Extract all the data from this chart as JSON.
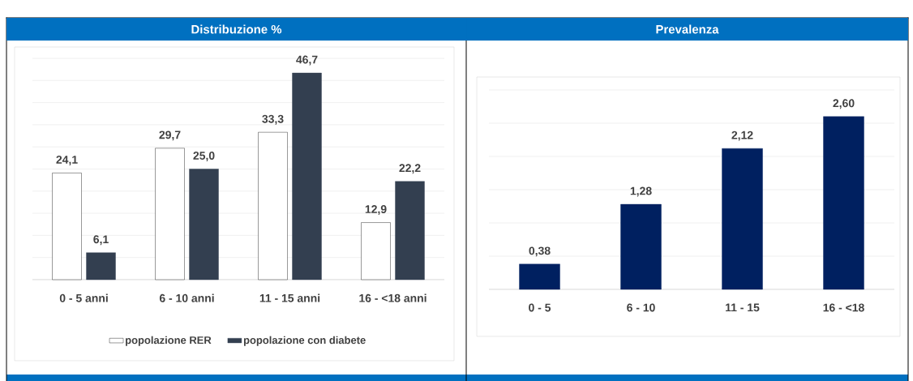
{
  "chart_data": [
    {
      "type": "bar",
      "title": "Distribuzione %",
      "categories": [
        "0 - 5 anni",
        "6 - 10 anni",
        "11 - 15 anni",
        "16 - <18 anni"
      ],
      "series": [
        {
          "name": "popolazione RER",
          "color": "#ffffff",
          "values": [
            24.1,
            29.7,
            33.3,
            12.9
          ],
          "value_labels": [
            "24,1",
            "29,7",
            "33,3",
            "12,9"
          ]
        },
        {
          "name": "popolazione con diabete",
          "color": "#333f50",
          "values": [
            6.1,
            25.0,
            46.7,
            22.2
          ],
          "value_labels": [
            "6,1",
            "25,0",
            "46,7",
            "22,2"
          ]
        }
      ],
      "ylim": [
        0,
        50
      ],
      "yticks": [
        {
          "value": 0,
          "label": null
        },
        {
          "value": 5,
          "label": null
        },
        {
          "value": 10,
          "label": null
        },
        {
          "value": 15,
          "label": null
        },
        {
          "value": 20,
          "label": null
        },
        {
          "value": 25,
          "label": null
        },
        {
          "value": 30,
          "label": null
        },
        {
          "value": 35,
          "label": null
        },
        {
          "value": 40,
          "label": null
        },
        {
          "value": 45,
          "label": null
        },
        {
          "value": 50,
          "label": null
        }
      ],
      "grid": "y",
      "tick_labels": "x",
      "legend": "bottom"
    },
    {
      "type": "bar",
      "title": "Prevalenza",
      "categories": [
        "0 - 5",
        "6 - 10",
        "11 - 15",
        "16 - <18"
      ],
      "color": "#002060",
      "values": [
        0.38,
        1.28,
        2.12,
        2.6
      ],
      "value_labels": [
        "0,38",
        "1,28",
        "2,12",
        "2,60"
      ],
      "ylim": [
        0,
        3
      ],
      "yticks": [
        {
          "value": 0,
          "label": null
        },
        {
          "value": 0.5,
          "label": null
        },
        {
          "value": 1,
          "label": null
        },
        {
          "value": 1.5,
          "label": null
        },
        {
          "value": 2,
          "label": null
        },
        {
          "value": 2.5,
          "label": null
        },
        {
          "value": 3,
          "label": null
        }
      ],
      "grid": "y",
      "tick_labels": "x"
    }
  ]
}
